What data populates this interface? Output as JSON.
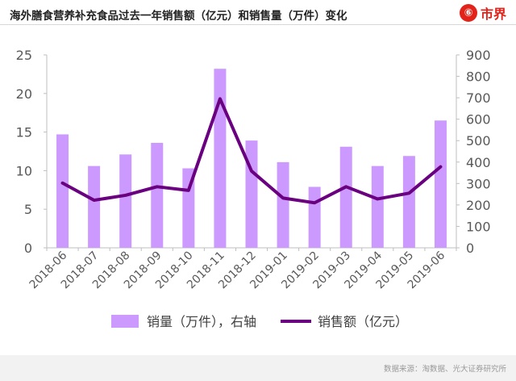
{
  "title": "海外膳食营养补充食品过去一年销售额（亿元）和销售量（万件）变化",
  "brand": {
    "mark": "⑥",
    "name": "市界"
  },
  "source": "数据来源：淘数据、光大证券研究所",
  "chart_data": {
    "type": "bar",
    "categories": [
      "2018-06",
      "2018-07",
      "2018-08",
      "2018-09",
      "2018-10",
      "2018-11",
      "2018-12",
      "2019-01",
      "2019-02",
      "2019-03",
      "2019-04",
      "2019-05",
      "2019-06"
    ],
    "series": [
      {
        "name": "销量（万件），右轴",
        "type": "bar",
        "axis": "left",
        "color": "#cc99ff",
        "values": [
          14.7,
          10.6,
          12.1,
          13.6,
          10.3,
          23.2,
          13.9,
          11.1,
          7.9,
          13.1,
          10.6,
          11.9,
          16.5
        ]
      },
      {
        "name": "销售额（亿元）",
        "type": "line",
        "axis": "right",
        "color": "#6a0080",
        "values": [
          302,
          222,
          245,
          285,
          268,
          695,
          358,
          232,
          210,
          285,
          228,
          255,
          378
        ]
      }
    ],
    "y_left": {
      "ticks": [
        "0",
        "5",
        "10",
        "15",
        "20",
        "25"
      ],
      "range": [
        0,
        25
      ]
    },
    "y_right": {
      "ticks": [
        "0",
        "100",
        "200",
        "300",
        "400",
        "500",
        "600",
        "700",
        "800",
        "900"
      ],
      "range": [
        0,
        900
      ]
    },
    "legend_position": "bottom",
    "grid": false
  }
}
